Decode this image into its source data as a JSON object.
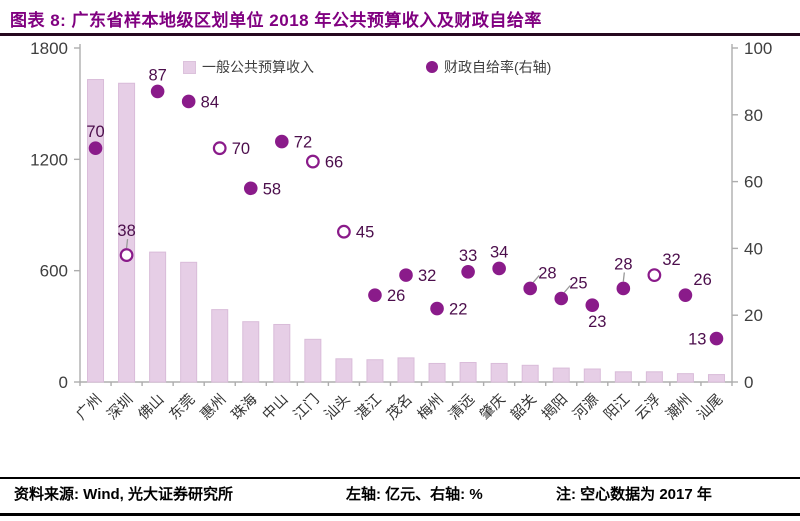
{
  "header": {
    "title": "图表 8:  广东省样本地级区划单位 2018 年公共预算收入及财政自给率"
  },
  "footer": {
    "source": "资料来源: Wind, 光大证券研究所",
    "axis_note": "左轴: 亿元、右轴: %",
    "note": "注: 空心数据为 2017 年"
  },
  "colors": {
    "bar_fill": "#e6cee6",
    "bar_border": "#d9bcd9",
    "dot": "#8a1b8a",
    "point_label": "#4c0e4c",
    "title": "#800080",
    "axis_text": "#3f3f3f",
    "axis_line": "#adadad",
    "leader_line": "#999999"
  },
  "chart_data": {
    "type": "combo",
    "title": "广东省样本地级区划单位2018年公共预算收入及财政自给率",
    "categories": [
      "广州",
      "深圳",
      "佛山",
      "东莞",
      "惠州",
      "珠海",
      "中山",
      "江门",
      "汕头",
      "湛江",
      "茂名",
      "梅州",
      "清远",
      "肇庆",
      "韶关",
      "揭阳",
      "河源",
      "阳江",
      "云浮",
      "潮州",
      "汕尾"
    ],
    "series": [
      {
        "name": "一般公共预算收入",
        "type": "bar",
        "axis": "left",
        "values": [
          1630,
          1610,
          700,
          645,
          390,
          325,
          310,
          230,
          125,
          120,
          130,
          100,
          105,
          100,
          90,
          75,
          70,
          55,
          55,
          45,
          40
        ]
      },
      {
        "name": "财政自给率(右轴)",
        "type": "scatter",
        "axis": "right",
        "values": [
          70,
          38,
          87,
          84,
          70,
          58,
          72,
          66,
          45,
          26,
          32,
          22,
          33,
          34,
          28,
          25,
          23,
          28,
          32,
          26,
          13
        ],
        "hollow": [
          false,
          true,
          false,
          false,
          true,
          false,
          false,
          true,
          true,
          false,
          false,
          false,
          false,
          false,
          false,
          false,
          false,
          false,
          true,
          false,
          false
        ],
        "label_pos": [
          "above",
          "above",
          "above",
          "right",
          "right",
          "right",
          "right",
          "right",
          "right",
          "right",
          "right",
          "right",
          "above",
          "above",
          "above-right",
          "above-right",
          "below",
          "above",
          "above-right",
          "above-right",
          "left"
        ],
        "leader": [
          false,
          true,
          false,
          false,
          false,
          false,
          false,
          false,
          false,
          false,
          false,
          false,
          false,
          false,
          true,
          true,
          false,
          true,
          false,
          false,
          false
        ]
      }
    ],
    "left_axis": {
      "min": 0,
      "max": 1800,
      "ticks": [
        0,
        600,
        1200,
        1800
      ]
    },
    "right_axis": {
      "min": 0,
      "max": 100,
      "ticks": [
        0,
        20,
        40,
        60,
        80,
        100
      ]
    },
    "legend_position": "top-inside",
    "grid": false,
    "hollow_note": "空心数据为 2017 年"
  }
}
